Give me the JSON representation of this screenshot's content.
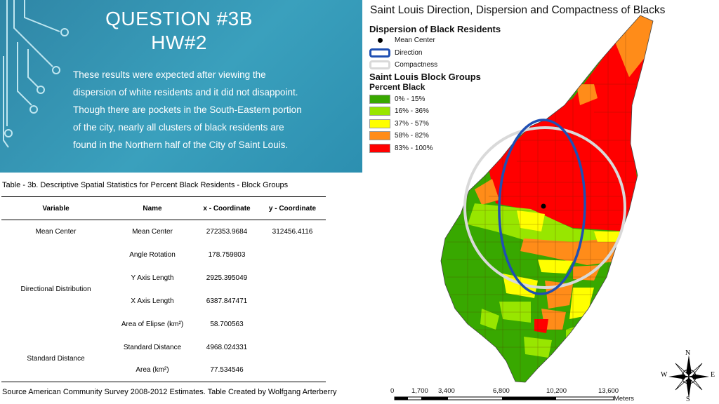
{
  "header": {
    "title_line1": "QUESTION #3B",
    "title_line2": "HW#2",
    "body": "These results were expected after viewing the dispersion of white residents and it did not disappoint. Though there are pockets in the South-Eastern portion of the city, nearly all clusters of black residents are found in the Northern half of the City of Saint Louis."
  },
  "table": {
    "caption": "Table - 3b. Descriptive Spatial Statistics for Percent Black Residents - Block Groups",
    "columns": [
      "Variable",
      "Name",
      "x - Coordinate",
      "y - Coordinate"
    ],
    "rows": [
      {
        "variable": "Mean Center",
        "name": "Mean Center",
        "x": "272353.9684",
        "y": "312456.4116"
      },
      {
        "variable": "Directional Distribution",
        "name": "Angle Rotation",
        "x": "178.759803",
        "y": ""
      },
      {
        "variable": "",
        "name": "Y Axis Length",
        "x": "2925.395049",
        "y": ""
      },
      {
        "variable": "",
        "name": "X Axis Length",
        "x": "6387.847471",
        "y": ""
      },
      {
        "variable": "",
        "name": "Area of Elipse (km²)",
        "x": "58.700563",
        "y": ""
      },
      {
        "variable": "Standard Distance",
        "name": "Standard Distance",
        "x": "4968.024331",
        "y": ""
      },
      {
        "variable": "",
        "name": "Area (km²)",
        "x": "77.534546",
        "y": ""
      }
    ],
    "source": "Source American Community Survey 2008-2012 Estimates. Table Created by Wolfgang Arterberry"
  },
  "map": {
    "title": "Saint Louis Direction, Dispersion and Compactness of Blacks",
    "legend": {
      "heading1": "Dispersion of Black Residents",
      "symbols": [
        {
          "label": "Mean Center",
          "color": "#000000"
        },
        {
          "label": "Direction",
          "color": "#1f4fb3"
        },
        {
          "label": "Compactness",
          "color": "#d9d9d9"
        }
      ],
      "heading2": "Saint Louis Block Groups",
      "heading3": "Percent Black",
      "classes": [
        {
          "label": "0% - 15%",
          "color": "#38a800"
        },
        {
          "label": "16% - 36%",
          "color": "#98e600"
        },
        {
          "label": "37% - 57%",
          "color": "#ffff00"
        },
        {
          "label": "58% - 82%",
          "color": "#ff8c19"
        },
        {
          "label": "83% - 100%",
          "color": "#ff0000"
        }
      ]
    },
    "scale": {
      "ticks": [
        "0",
        "1,700",
        "3,400",
        "6,800",
        "10,200",
        "13,600"
      ],
      "unit": "Meters"
    },
    "compass": {
      "n": "N",
      "s": "S",
      "e": "E",
      "w": "W"
    }
  }
}
